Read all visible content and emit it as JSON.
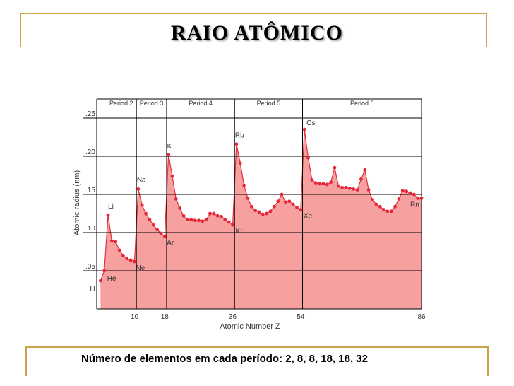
{
  "slide": {
    "title": "RAIO ATÔMICO",
    "caption": "Número de elementos em cada período: 2, 8, 8, 18, 18, 32"
  },
  "chart_data": {
    "type": "area",
    "xlabel": "Atomic Number Z",
    "ylabel": "Atomic radius (nm)",
    "xlim": [
      0,
      86
    ],
    "ylim": [
      0,
      0.275
    ],
    "x_ticks": [
      {
        "value": 10,
        "label": "10"
      },
      {
        "value": 18,
        "label": "18"
      },
      {
        "value": 36,
        "label": "36"
      },
      {
        "value": 54,
        "label": "54"
      },
      {
        "value": 86,
        "label": "86"
      }
    ],
    "y_ticks": [
      {
        "value": 0.05,
        "label": ".05"
      },
      {
        "value": 0.1,
        "label": ".10"
      },
      {
        "value": 0.15,
        "label": ".15"
      },
      {
        "value": 0.2,
        "label": ".20"
      },
      {
        "value": 0.25,
        "label": ".25"
      }
    ],
    "periods": [
      {
        "label": "Period 2",
        "start": 2.5,
        "end": 10.5
      },
      {
        "label": "Period 3",
        "start": 10.5,
        "end": 18.5
      },
      {
        "label": "Period 4",
        "start": 18.5,
        "end": 36.5
      },
      {
        "label": "Period 5",
        "start": 36.5,
        "end": 54.5
      },
      {
        "label": "Period 6",
        "start": 54.5,
        "end": 86
      }
    ],
    "x": [
      1,
      2,
      3,
      4,
      5,
      6,
      7,
      8,
      9,
      10,
      11,
      12,
      13,
      14,
      15,
      16,
      17,
      18,
      19,
      20,
      21,
      22,
      23,
      24,
      25,
      26,
      27,
      28,
      29,
      30,
      31,
      32,
      33,
      34,
      35,
      36,
      37,
      38,
      39,
      40,
      41,
      42,
      43,
      44,
      45,
      46,
      47,
      48,
      49,
      50,
      51,
      52,
      53,
      54,
      55,
      56,
      57,
      58,
      59,
      60,
      61,
      62,
      63,
      64,
      65,
      66,
      67,
      68,
      69,
      70,
      71,
      72,
      73,
      74,
      75,
      76,
      77,
      78,
      79,
      80,
      81,
      82,
      83,
      84,
      85,
      86
    ],
    "series": [
      {
        "values": [
          0.037,
          0.05,
          0.123,
          0.089,
          0.088,
          0.077,
          0.07,
          0.066,
          0.064,
          0.062,
          0.157,
          0.136,
          0.125,
          0.117,
          0.11,
          0.104,
          0.099,
          0.095,
          0.202,
          0.174,
          0.144,
          0.132,
          0.122,
          0.117,
          0.117,
          0.116,
          0.116,
          0.115,
          0.117,
          0.125,
          0.125,
          0.122,
          0.121,
          0.117,
          0.114,
          0.11,
          0.216,
          0.191,
          0.162,
          0.145,
          0.134,
          0.129,
          0.127,
          0.124,
          0.125,
          0.128,
          0.134,
          0.141,
          0.15,
          0.14,
          0.141,
          0.137,
          0.133,
          0.13,
          0.235,
          0.198,
          0.169,
          0.165,
          0.164,
          0.164,
          0.163,
          0.166,
          0.185,
          0.161,
          0.159,
          0.159,
          0.158,
          0.157,
          0.156,
          0.17,
          0.182,
          0.156,
          0.143,
          0.137,
          0.134,
          0.13,
          0.128,
          0.128,
          0.134,
          0.144,
          0.155,
          0.154,
          0.152,
          0.15,
          0.145,
          0.145
        ]
      }
    ],
    "annotations": [
      {
        "label": "H",
        "x": 1
      },
      {
        "label": "He",
        "x": 2
      },
      {
        "label": "Li",
        "x": 3
      },
      {
        "label": "Ne",
        "x": 10
      },
      {
        "label": "Na",
        "x": 11
      },
      {
        "label": "Ar",
        "x": 18
      },
      {
        "label": "K",
        "x": 19
      },
      {
        "label": "Kr",
        "x": 36
      },
      {
        "label": "Rb",
        "x": 37
      },
      {
        "label": "Xe",
        "x": 54
      },
      {
        "label": "Cs",
        "x": 55
      },
      {
        "label": "Rn",
        "x": 86
      }
    ],
    "colors": {
      "fill": "#f7a0a0",
      "line": "#e0303a",
      "marker": "#e8263a",
      "grid": "#000000"
    }
  }
}
